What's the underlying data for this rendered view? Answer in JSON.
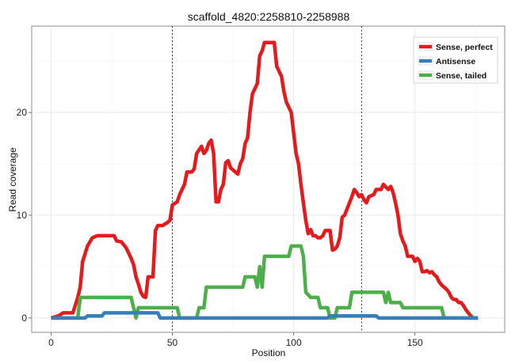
{
  "chart_data": {
    "type": "line",
    "title": "scaffold_4820:2258810-2258988",
    "xlabel": "Position",
    "ylabel": "Read coverage",
    "xlim": [
      -8,
      187
    ],
    "ylim": [
      -1.4,
      28.4
    ],
    "xticks": [
      0,
      50,
      100,
      150
    ],
    "yticks": [
      0,
      10,
      20
    ],
    "grid": true,
    "legend_position": "top-right",
    "vlines": [
      50,
      128
    ],
    "series": [
      {
        "name": "Sense, perfect",
        "color": "#e41a1c",
        "points": [
          [
            0,
            0
          ],
          [
            3,
            0.2
          ],
          [
            5,
            0.5
          ],
          [
            9,
            0.5
          ],
          [
            11,
            2
          ],
          [
            12,
            3
          ],
          [
            13,
            5.5
          ],
          [
            15,
            7
          ],
          [
            17,
            7.8
          ],
          [
            19,
            8
          ],
          [
            21,
            8
          ],
          [
            24,
            8
          ],
          [
            26,
            8
          ],
          [
            27,
            7.5
          ],
          [
            29,
            7.4
          ],
          [
            31,
            6.8
          ],
          [
            33,
            5.8
          ],
          [
            34,
            5.2
          ],
          [
            35,
            4
          ],
          [
            36,
            3.3
          ],
          [
            37,
            2.5
          ],
          [
            38,
            2.1
          ],
          [
            39,
            2
          ],
          [
            40,
            4
          ],
          [
            42,
            4
          ],
          [
            43,
            8.5
          ],
          [
            44,
            9
          ],
          [
            46,
            9
          ],
          [
            48,
            9.3
          ],
          [
            49,
            9.5
          ],
          [
            50,
            11
          ],
          [
            52,
            11.3
          ],
          [
            53,
            12
          ],
          [
            55,
            13
          ],
          [
            56,
            14.2
          ],
          [
            58,
            14.2
          ],
          [
            59,
            14.5
          ],
          [
            60,
            16
          ],
          [
            62,
            16.7
          ],
          [
            63,
            16
          ],
          [
            64,
            16.3
          ],
          [
            65,
            17
          ],
          [
            66,
            17.3
          ],
          [
            67,
            16
          ],
          [
            68,
            11.3
          ],
          [
            69,
            11.3
          ],
          [
            70,
            12.5
          ],
          [
            71,
            13
          ],
          [
            72,
            15.1
          ],
          [
            73,
            15.3
          ],
          [
            74,
            14.6
          ],
          [
            76,
            14.2
          ],
          [
            77,
            14
          ],
          [
            78,
            15
          ],
          [
            79,
            15.5
          ],
          [
            80,
            17
          ],
          [
            81,
            17.5
          ],
          [
            82,
            20
          ],
          [
            83,
            21.8
          ],
          [
            84,
            22.3
          ],
          [
            85,
            22.8
          ],
          [
            86,
            25.5
          ],
          [
            87,
            26
          ],
          [
            88,
            26.8
          ],
          [
            92,
            26.8
          ],
          [
            93,
            24.5
          ],
          [
            95,
            23.5
          ],
          [
            96,
            22
          ],
          [
            97,
            21
          ],
          [
            99,
            20
          ],
          [
            100,
            18
          ],
          [
            101,
            16
          ],
          [
            102,
            15
          ],
          [
            103,
            13
          ],
          [
            104,
            11.2
          ],
          [
            105,
            9.5
          ],
          [
            106,
            8.2
          ],
          [
            107,
            8.6
          ],
          [
            108,
            8
          ],
          [
            109,
            8
          ],
          [
            110,
            7.8
          ],
          [
            111,
            7.8
          ],
          [
            112,
            8
          ],
          [
            113,
            8.5
          ],
          [
            115,
            8.5
          ],
          [
            116,
            6.6
          ],
          [
            117,
            6.7
          ],
          [
            118,
            7
          ],
          [
            119,
            7.8
          ],
          [
            120,
            9.8
          ],
          [
            121,
            10
          ],
          [
            123,
            11.2
          ],
          [
            124,
            11.8
          ],
          [
            125,
            12.5
          ],
          [
            126,
            12.2
          ],
          [
            127,
            11.8
          ],
          [
            128,
            12
          ],
          [
            129,
            11.5
          ],
          [
            130,
            11.2
          ],
          [
            131,
            11.8
          ],
          [
            133,
            12
          ],
          [
            134,
            12.5
          ],
          [
            136,
            12.5
          ],
          [
            137,
            13
          ],
          [
            139,
            12.5
          ],
          [
            140,
            12.8
          ],
          [
            141,
            12.2
          ],
          [
            142,
            11.2
          ],
          [
            143,
            10
          ],
          [
            144,
            8.2
          ],
          [
            145,
            7.5
          ],
          [
            146,
            7
          ],
          [
            147,
            6
          ],
          [
            149,
            6
          ],
          [
            150,
            5.5
          ],
          [
            151,
            5.8
          ],
          [
            152,
            5.5
          ],
          [
            153,
            4.5
          ],
          [
            154,
            4.5
          ],
          [
            155,
            4.6
          ],
          [
            156,
            4.4
          ],
          [
            157,
            4.5
          ],
          [
            158,
            4.2
          ],
          [
            159,
            4
          ],
          [
            160,
            3.5
          ],
          [
            161,
            3.2
          ],
          [
            162,
            3
          ],
          [
            163,
            2.8
          ],
          [
            164,
            2.5
          ],
          [
            165,
            2
          ],
          [
            166,
            1.8
          ],
          [
            167,
            1.8
          ],
          [
            168,
            1.5
          ],
          [
            169,
            1.5
          ],
          [
            170,
            1.2
          ],
          [
            171,
            0.8
          ],
          [
            172,
            0.5
          ],
          [
            173,
            0.2
          ],
          [
            174,
            0
          ],
          [
            176,
            0
          ]
        ]
      },
      {
        "name": "Antisense",
        "color": "#377eb8",
        "points": [
          [
            0,
            0
          ],
          [
            14,
            0
          ],
          [
            15,
            0.2
          ],
          [
            21,
            0.2
          ],
          [
            22,
            0.5
          ],
          [
            44,
            0.5
          ],
          [
            45,
            0
          ],
          [
            114,
            0
          ],
          [
            115,
            0.2
          ],
          [
            134,
            0.2
          ],
          [
            135,
            0
          ],
          [
            176,
            0
          ]
        ]
      },
      {
        "name": "Sense, tailed",
        "color": "#4daf4a",
        "points": [
          [
            0,
            0
          ],
          [
            11,
            0
          ],
          [
            12,
            2
          ],
          [
            33,
            2
          ],
          [
            34,
            1
          ],
          [
            35,
            0
          ],
          [
            36,
            1
          ],
          [
            52,
            1
          ],
          [
            53,
            0
          ],
          [
            60,
            0
          ],
          [
            61,
            1
          ],
          [
            63,
            1
          ],
          [
            64,
            3
          ],
          [
            79,
            3
          ],
          [
            80,
            4
          ],
          [
            84,
            4
          ],
          [
            85,
            3
          ],
          [
            86,
            5
          ],
          [
            87,
            3
          ],
          [
            88,
            6
          ],
          [
            98,
            6
          ],
          [
            99,
            7
          ],
          [
            103,
            7
          ],
          [
            104,
            6
          ],
          [
            105,
            2.5
          ],
          [
            107,
            2
          ],
          [
            110,
            2
          ],
          [
            111,
            1
          ],
          [
            114,
            1
          ],
          [
            115,
            0
          ],
          [
            117,
            0
          ],
          [
            118,
            1
          ],
          [
            123,
            1
          ],
          [
            124,
            2.5
          ],
          [
            137,
            2.5
          ],
          [
            138,
            1.5
          ],
          [
            139,
            2.5
          ],
          [
            140,
            1.5
          ],
          [
            144,
            1.5
          ],
          [
            145,
            1
          ],
          [
            161,
            1
          ],
          [
            162,
            0
          ],
          [
            176,
            0
          ]
        ]
      }
    ]
  }
}
